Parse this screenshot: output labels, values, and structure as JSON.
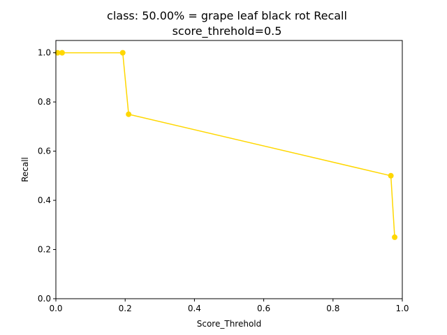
{
  "chart_data": {
    "type": "line",
    "title": "class: 50.00% = grape leaf black rot Recall",
    "subtitle": "score_threhold=0.5",
    "xlabel": "Score_Threhold",
    "ylabel": "Recall",
    "xlim": [
      0.0,
      1.0
    ],
    "ylim": [
      0.0,
      1.05
    ],
    "x_ticks": [
      "0.0",
      "0.2",
      "0.4",
      "0.6",
      "0.8",
      "1.0"
    ],
    "y_ticks": [
      "0.0",
      "0.2",
      "0.4",
      "0.6",
      "0.8",
      "1.0"
    ],
    "grid": false,
    "series": [
      {
        "color": "#ffd700",
        "marker": "circle",
        "x": [
          0.005,
          0.018,
          0.193,
          0.21,
          0.967,
          0.978
        ],
        "y": [
          1.0,
          1.0,
          1.0,
          0.75,
          0.5,
          0.25
        ]
      }
    ]
  }
}
